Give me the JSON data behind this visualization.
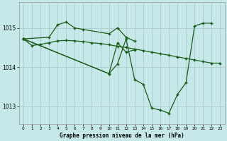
{
  "bg_color": "#c6e8e8",
  "grid_color": "#b0d0d0",
  "line_color": "#1a5c1a",
  "title": "Graphe pression niveau de la mer (hPa)",
  "xlim": [
    -0.5,
    23.5
  ],
  "ylim": [
    1012.55,
    1015.65
  ],
  "yticks": [
    1013,
    1014,
    1015
  ],
  "ytick_labels": [
    "1013",
    "1014",
    "1015"
  ],
  "xticks": [
    0,
    1,
    2,
    3,
    4,
    5,
    6,
    7,
    8,
    9,
    10,
    11,
    12,
    13,
    14,
    15,
    16,
    17,
    18,
    19,
    20,
    21,
    22,
    23
  ],
  "s1_x": [
    0,
    1,
    2,
    3,
    4,
    5,
    6,
    7,
    8,
    9,
    10,
    11,
    12,
    13,
    14,
    15,
    16,
    17,
    18,
    19,
    20,
    21,
    22,
    23
  ],
  "s1_y": [
    1014.72,
    1014.55,
    1014.58,
    1014.62,
    1014.67,
    1014.68,
    1014.67,
    1014.65,
    1014.62,
    1014.6,
    1014.57,
    1014.53,
    1014.5,
    1014.46,
    1014.42,
    1014.38,
    1014.34,
    1014.3,
    1014.26,
    1014.22,
    1014.18,
    1014.14,
    1014.1,
    1014.1
  ],
  "s2_x": [
    0,
    3,
    4,
    5,
    6,
    7,
    10,
    11,
    12,
    13
  ],
  "s2_y": [
    1014.72,
    1014.76,
    1015.08,
    1015.15,
    1015.0,
    1014.96,
    1014.85,
    1015.0,
    1014.76,
    1014.66
  ],
  "s3_x": [
    0,
    10,
    11,
    12,
    13
  ],
  "s3_y": [
    1014.72,
    1013.83,
    1014.62,
    1014.38,
    1014.44
  ],
  "s4_x": [
    0,
    10,
    11,
    12,
    13,
    14,
    15,
    16,
    17,
    18,
    19,
    20,
    21,
    22
  ],
  "s4_y": [
    1014.72,
    1013.83,
    1014.08,
    1014.72,
    1013.68,
    1013.56,
    1012.95,
    1012.9,
    1012.82,
    1013.3,
    1013.6,
    1015.05,
    1015.12,
    1015.12
  ]
}
